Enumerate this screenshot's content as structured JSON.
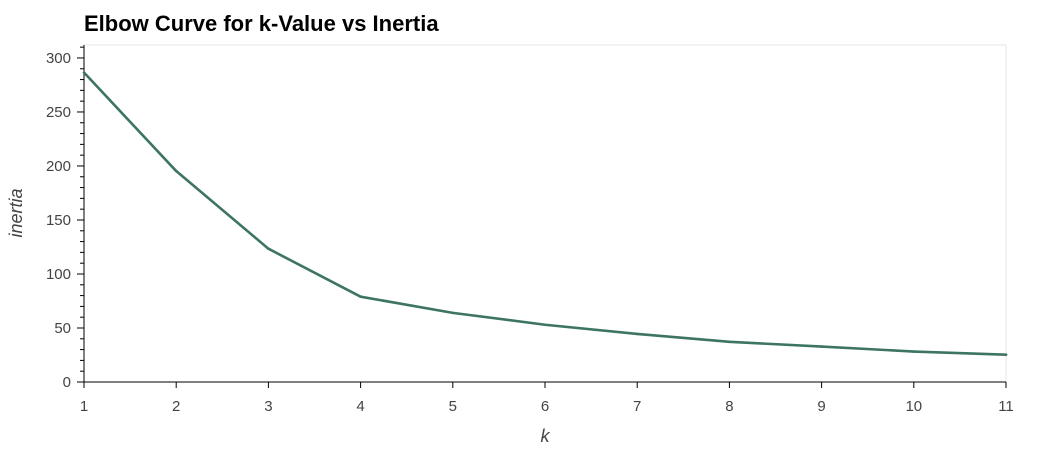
{
  "chart_data": {
    "type": "line",
    "title": "Elbow Curve for k-Value vs Inertia",
    "xlabel": "k",
    "ylabel": "inertia",
    "x": [
      1,
      2,
      3,
      4,
      5,
      6,
      7,
      8,
      9,
      10,
      11
    ],
    "series": [
      {
        "values": [
          286.5,
          195.3,
          123.4,
          79.0,
          64.0,
          53.0,
          44.5,
          37.2,
          32.8,
          28.2,
          25.3
        ],
        "color": "#3d7560"
      }
    ],
    "xlim": [
      1,
      11
    ],
    "ylim": [
      0,
      312
    ],
    "x_ticks": [
      1,
      2,
      3,
      4,
      5,
      6,
      7,
      8,
      9,
      10,
      11
    ],
    "y_ticks": [
      0,
      50,
      100,
      150,
      200,
      250,
      300
    ],
    "grid": false,
    "colors": {
      "frame": "#e6e6e6",
      "axis": "#000000",
      "tick_text": "#444444"
    }
  }
}
